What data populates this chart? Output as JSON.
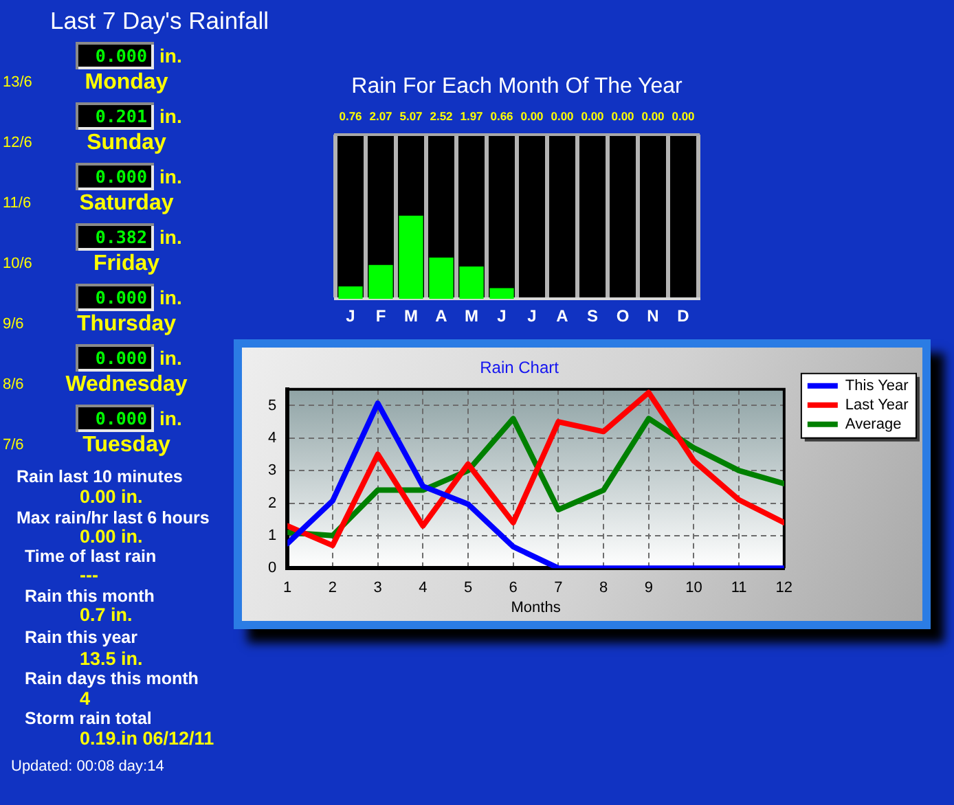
{
  "chart_data": [
    {
      "type": "heatmap",
      "title": "Last 7 Day's Rainfall",
      "categories": [
        null
      ],
      "y_categories": [
        "13/6",
        "12/6",
        "11/6",
        "10/6",
        "9/6",
        "8/6",
        "7/6"
      ],
      "y2_categories": [
        "Monday",
        "Sunday",
        "Saturday",
        "Friday",
        "Thursday",
        "Wednesday",
        "Tuesday"
      ],
      "cells": [
        [
          0
        ],
        [
          0.201
        ],
        [
          0
        ],
        [
          0.382
        ],
        [
          0
        ],
        [
          0
        ],
        [
          0
        ]
      ],
      "cell_labels": [
        [
          "0.000"
        ],
        [
          "0.201"
        ],
        [
          "0.000"
        ],
        [
          "0.382"
        ],
        [
          "0.000"
        ],
        [
          "0.000"
        ],
        [
          "0.000"
        ]
      ],
      "annotations": [
        "in.",
        "in.",
        "in.",
        "in.",
        "in.",
        "in.",
        "in."
      ],
      "tick_labels": "y"
    },
    {
      "type": "other",
      "annotations": [
        "Rain last 10 minutes",
        "0.00 in.",
        "Max rain/hr last 6 hours",
        "0.00 in.",
        "Time of last rain",
        "---",
        "Rain this month",
        "0.7 in.",
        "Rain this year",
        "13.5 in.",
        "Rain days this month",
        "4",
        "Storm rain total",
        "0.19.in 06/12/11",
        "Updated: 00:08 day:14"
      ]
    },
    {
      "type": "bar",
      "title": "Rain For Each Month Of The Year",
      "categories": [
        "J",
        "F",
        "M",
        "A",
        "M",
        "J",
        "J",
        "A",
        "S",
        "O",
        "N",
        "D"
      ],
      "values": [
        0.76,
        2.07,
        5.07,
        2.52,
        1.97,
        0.66,
        0,
        0,
        0,
        0,
        0,
        0
      ],
      "value_labels": [
        "0.76",
        "2.07",
        "5.07",
        "2.52",
        "1.97",
        "0.66",
        "0.00",
        "0.00",
        "0.00",
        "0.00",
        "0.00",
        "0.00"
      ],
      "color": "#00ff00",
      "ylim": [
        0,
        10
      ],
      "tick_labels": "x",
      "grid": "x"
    },
    {
      "type": "line",
      "title": "Rain Chart",
      "xlabel": "Months",
      "x": [
        1,
        2,
        3,
        4,
        5,
        6,
        7,
        8,
        9,
        10,
        11,
        12
      ],
      "series": [
        {
          "name": "This Year",
          "color": "#0000ff",
          "values": [
            0.76,
            2.07,
            5.07,
            2.52,
            1.97,
            0.66,
            0,
            0,
            0,
            0,
            0,
            0
          ]
        },
        {
          "name": "Last Year",
          "color": "#ff0000",
          "values": [
            1.3,
            0.7,
            3.5,
            1.3,
            3.2,
            1.4,
            4.5,
            4.2,
            5.4,
            3.3,
            2.1,
            1.4
          ]
        },
        {
          "name": "Average",
          "color": "#008000",
          "values": [
            1.1,
            1.0,
            2.4,
            2.4,
            3.0,
            4.6,
            1.8,
            2.4,
            4.6,
            3.7,
            3.0,
            2.6
          ]
        }
      ],
      "xlim": [
        1,
        12
      ],
      "ylim": [
        0,
        5.5
      ],
      "xticks": [
        1,
        2,
        3,
        4,
        5,
        6,
        7,
        8,
        9,
        10,
        11,
        12
      ],
      "yticks": [
        0,
        1,
        2,
        3,
        4,
        5
      ],
      "grid": true,
      "legend": "top right"
    }
  ]
}
